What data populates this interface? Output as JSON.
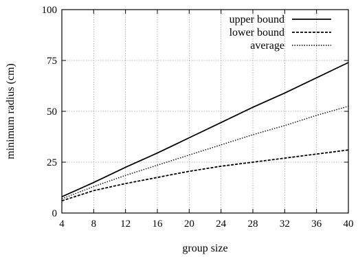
{
  "chart_data": {
    "type": "line",
    "xlabel": "group size",
    "ylabel": "minimum radius (cm)",
    "xlim": [
      4,
      40
    ],
    "ylim": [
      0,
      100
    ],
    "xticks": [
      4,
      8,
      12,
      16,
      20,
      24,
      28,
      32,
      36,
      40
    ],
    "yticks": [
      0,
      25,
      50,
      75,
      100
    ],
    "grid": true,
    "legend_position": "top-right",
    "series": [
      {
        "name": "upper bound",
        "style": "solid",
        "color": "#000000",
        "x": [
          4,
          8,
          12,
          16,
          20,
          24,
          28,
          32,
          36,
          40
        ],
        "y": [
          8,
          15,
          22.5,
          29.5,
          37,
          44.5,
          52,
          59,
          66.5,
          74
        ]
      },
      {
        "name": "lower bound",
        "style": "dashed",
        "color": "#000000",
        "x": [
          4,
          8,
          12,
          16,
          20,
          24,
          28,
          32,
          36,
          40
        ],
        "y": [
          6,
          11,
          14.5,
          17.5,
          20.5,
          23,
          25,
          27,
          29,
          31
        ]
      },
      {
        "name": "average",
        "style": "dotted",
        "color": "#000000",
        "x": [
          4,
          8,
          12,
          16,
          20,
          24,
          28,
          32,
          36,
          40
        ],
        "y": [
          7,
          13,
          18.5,
          23.5,
          28.5,
          33.5,
          38.5,
          43,
          48,
          52.5
        ]
      }
    ]
  }
}
